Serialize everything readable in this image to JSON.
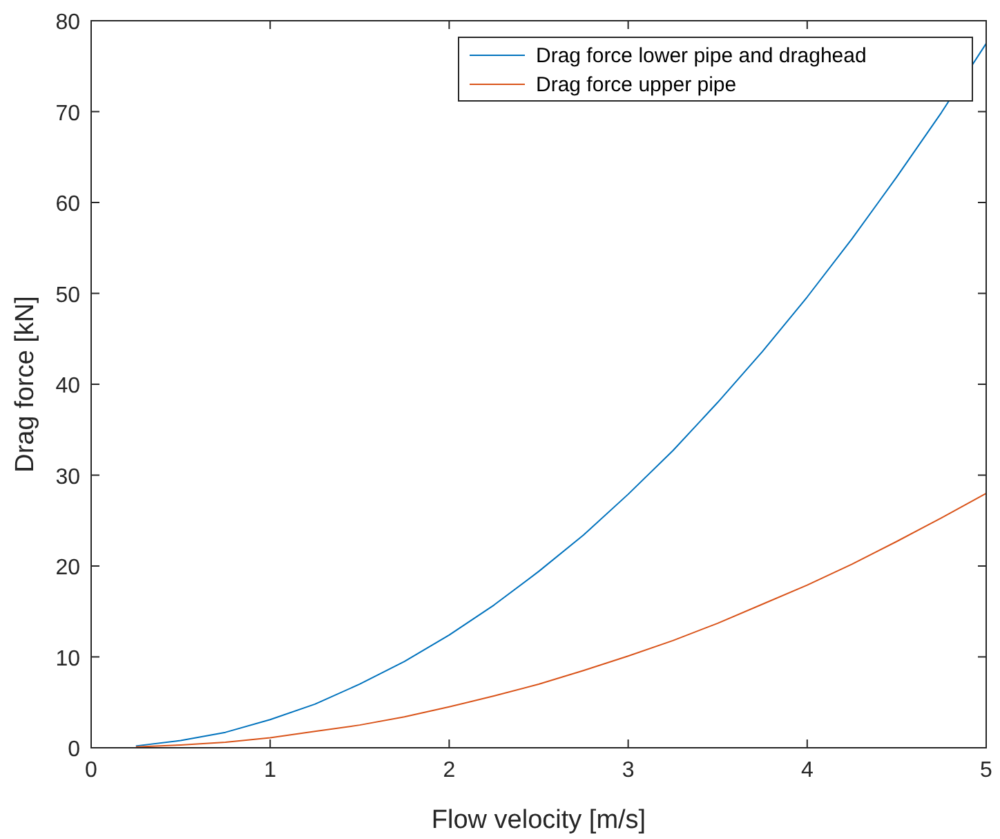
{
  "chart_data": {
    "type": "line",
    "xlabel": "Flow velocity [m/s]",
    "ylabel": "Drag force [kN]",
    "x": [
      0.25,
      0.5,
      0.75,
      1,
      1.25,
      1.5,
      1.75,
      2,
      2.25,
      2.5,
      2.75,
      3,
      3.25,
      3.5,
      3.75,
      4,
      4.25,
      4.5,
      4.75,
      5
    ],
    "series": [
      {
        "name": "Drag force lower pipe and draghead",
        "color": "#0072bd",
        "values": [
          0.2,
          0.8,
          1.7,
          3.1,
          4.8,
          7.0,
          9.5,
          12.4,
          15.7,
          19.4,
          23.4,
          27.9,
          32.7,
          38.0,
          43.6,
          49.6,
          56.0,
          62.8,
          69.9,
          77.5
        ]
      },
      {
        "name": "Drag force upper pipe",
        "color": "#d95319",
        "values": [
          0.1,
          0.3,
          0.6,
          1.1,
          1.8,
          2.5,
          3.4,
          4.5,
          5.7,
          7.0,
          8.5,
          10.1,
          11.8,
          13.7,
          15.8,
          17.9,
          20.2,
          22.7,
          25.3,
          28.0
        ]
      }
    ],
    "xlim": [
      0,
      5
    ],
    "xticks": [
      0,
      1,
      2,
      3,
      4,
      5
    ],
    "ylim": [
      0,
      80
    ],
    "yticks": [
      0,
      10,
      20,
      30,
      40,
      50,
      60,
      70,
      80
    ],
    "legend": "top right",
    "grid": false,
    "marker": "none",
    "line_style": "solid"
  }
}
